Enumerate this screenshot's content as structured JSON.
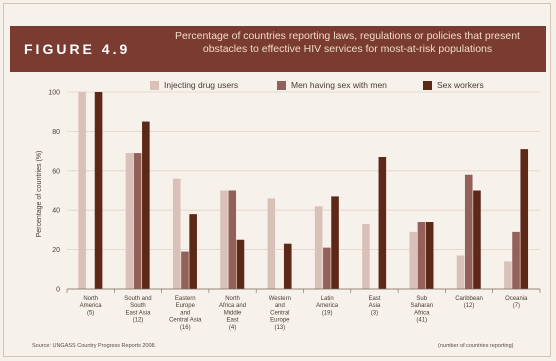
{
  "figure_label": "FIGURE 4.9",
  "chart_data": {
    "type": "bar",
    "title": "Percentage of countries reporting laws, regulations or policies that present obstacles to effective HIV services for most-at-risk populations",
    "ylabel": "Percentage of countries (%)",
    "xlabel": "",
    "ylim": [
      0,
      100
    ],
    "yticks": [
      0,
      20,
      40,
      60,
      80,
      100
    ],
    "grid": true,
    "legend_position": "top",
    "categories": [
      [
        "North",
        "America",
        "(5)"
      ],
      [
        "South and",
        "South",
        "East Asia",
        "(12)"
      ],
      [
        "Eastern",
        "Europe",
        "and",
        "Central Asia",
        "(16)"
      ],
      [
        "North",
        "Africa and",
        "Middle",
        "East",
        "(4)"
      ],
      [
        "Western",
        "and",
        "Central",
        "Europe",
        "(13)"
      ],
      [
        "Latin",
        "America",
        "(19)"
      ],
      [
        "East",
        "Asia",
        "(3)"
      ],
      [
        "Sub",
        "Saharan",
        "Africa",
        "(41)"
      ],
      [
        "Caribbean",
        "(12)"
      ],
      [
        "Oceania",
        "(7)"
      ]
    ],
    "series": [
      {
        "name": "Injecting drug users",
        "color": "#d9c1b9",
        "values": [
          100,
          69,
          56,
          50,
          46,
          42,
          33,
          29,
          17,
          14
        ]
      },
      {
        "name": "Men having sex with men",
        "color": "#94605a",
        "values": [
          0,
          69,
          19,
          50,
          0,
          21,
          0,
          34,
          58,
          29
        ]
      },
      {
        "name": "Sex workers",
        "color": "#5e2818",
        "values": [
          100,
          85,
          38,
          25,
          23,
          47,
          67,
          34,
          50,
          71
        ]
      }
    ]
  },
  "footer": {
    "source": "Source: UNGASS Country Progress Reports 2008.",
    "note": "(number of countries reporting)"
  }
}
